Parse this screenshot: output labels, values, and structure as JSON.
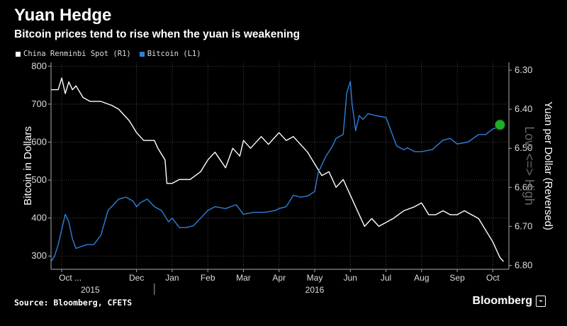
{
  "header": {
    "title": "Yuan Hedge",
    "subtitle": "Bitcoin prices tend to rise when the yuan is weakening"
  },
  "footer": {
    "source": "Source: Bloomberg, CFETS",
    "brand": "Bloomberg"
  },
  "colors": {
    "yuan": "#ffffff",
    "bitcoin": "#2f7fd8",
    "marker": "#1fae2a",
    "grid": "#555555",
    "background": "#000000"
  },
  "chart_data": {
    "type": "line",
    "title": "Yuan Hedge",
    "subtitle": "Bitcoin prices tend to rise when the yuan is weakening",
    "grid": true,
    "legend_position": "top-left",
    "y_left": {
      "label": "Bitcoin in Dollars",
      "range": [
        265,
        810
      ],
      "ticks": [
        300,
        400,
        500,
        600,
        700,
        800
      ]
    },
    "y_right": {
      "label": "Yuan per Dollar (Reversed)",
      "annotation": "Low <=> High",
      "range": [
        6.28,
        6.81
      ],
      "reversed": true,
      "ticks": [
        "6.30",
        "6.40",
        "6.50",
        "6.60",
        "6.70",
        "6.80"
      ]
    },
    "x_ticks": [
      "Oct ...",
      "Dec",
      "Jan",
      "Feb",
      "Mar",
      "Apr",
      "May",
      "Jun",
      "Jul",
      "Aug",
      "Sep",
      "Oct"
    ],
    "x_tick_months": [
      -0.1,
      2,
      3,
      4,
      5,
      6,
      7,
      8,
      9,
      10,
      11,
      12
    ],
    "years": [
      {
        "label": "2015",
        "month": 0.7
      },
      {
        "label": "2016",
        "month": 7
      }
    ],
    "year_divider_month": 2.5,
    "x_range_months": [
      -0.4,
      12.45
    ],
    "series": [
      {
        "name": "China Renminbi Spot (R1)",
        "axis": "right",
        "x": [
          -0.4,
          -0.2,
          -0.1,
          0.0,
          0.1,
          0.2,
          0.3,
          0.5,
          0.7,
          1.0,
          1.3,
          1.5,
          1.8,
          2.0,
          2.2,
          2.5,
          2.6,
          2.8,
          2.85,
          3.0,
          3.2,
          3.5,
          3.8,
          4.0,
          4.2,
          4.5,
          4.7,
          4.9,
          5.0,
          5.2,
          5.5,
          5.7,
          6.0,
          6.2,
          6.4,
          6.6,
          6.8,
          7.0,
          7.2,
          7.4,
          7.6,
          7.8,
          8.0,
          8.2,
          8.4,
          8.6,
          8.8,
          9.0,
          9.2,
          9.5,
          9.8,
          10.0,
          10.2,
          10.4,
          10.6,
          10.8,
          11.0,
          11.2,
          11.4,
          11.6,
          11.8,
          12.0,
          12.2,
          12.3
        ],
        "values": [
          6.35,
          6.35,
          6.32,
          6.36,
          6.33,
          6.35,
          6.34,
          6.37,
          6.38,
          6.38,
          6.39,
          6.4,
          6.43,
          6.46,
          6.48,
          6.48,
          6.5,
          6.53,
          6.59,
          6.59,
          6.58,
          6.58,
          6.56,
          6.53,
          6.51,
          6.55,
          6.5,
          6.52,
          6.48,
          6.5,
          6.47,
          6.49,
          6.46,
          6.48,
          6.47,
          6.49,
          6.51,
          6.54,
          6.57,
          6.56,
          6.6,
          6.58,
          6.62,
          6.66,
          6.7,
          6.68,
          6.7,
          6.69,
          6.68,
          6.66,
          6.65,
          6.64,
          6.67,
          6.67,
          6.66,
          6.67,
          6.67,
          6.66,
          6.67,
          6.68,
          6.71,
          6.74,
          6.78,
          6.79
        ]
      },
      {
        "name": "Bitcoin (L1)",
        "axis": "left",
        "x": [
          -0.4,
          -0.3,
          -0.2,
          -0.1,
          0.0,
          0.1,
          0.2,
          0.3,
          0.45,
          0.6,
          0.8,
          1.0,
          1.2,
          1.5,
          1.7,
          1.9,
          2.0,
          2.1,
          2.3,
          2.5,
          2.7,
          2.9,
          3.0,
          3.2,
          3.4,
          3.6,
          3.8,
          4.0,
          4.2,
          4.5,
          4.8,
          5.0,
          5.3,
          5.6,
          5.9,
          6.0,
          6.2,
          6.4,
          6.6,
          6.8,
          7.0,
          7.1,
          7.3,
          7.5,
          7.6,
          7.8,
          7.9,
          8.0,
          8.05,
          8.15,
          8.25,
          8.35,
          8.5,
          8.7,
          9.0,
          9.3,
          9.5,
          9.6,
          9.8,
          10.0,
          10.3,
          10.6,
          10.8,
          11.0,
          11.3,
          11.6,
          11.8,
          12.0,
          12.2
        ],
        "values": [
          285,
          300,
          330,
          370,
          410,
          390,
          345,
          320,
          325,
          330,
          330,
          355,
          420,
          450,
          455,
          445,
          430,
          440,
          450,
          430,
          420,
          390,
          400,
          375,
          375,
          380,
          400,
          420,
          430,
          425,
          435,
          410,
          415,
          415,
          420,
          425,
          430,
          460,
          455,
          458,
          470,
          520,
          560,
          590,
          610,
          620,
          730,
          760,
          700,
          630,
          670,
          660,
          675,
          670,
          665,
          590,
          580,
          585,
          575,
          575,
          580,
          605,
          610,
          595,
          600,
          620,
          620,
          635,
          640
        ]
      }
    ],
    "marker": {
      "month": 12.2,
      "value": 6.44,
      "axis": "right"
    }
  }
}
